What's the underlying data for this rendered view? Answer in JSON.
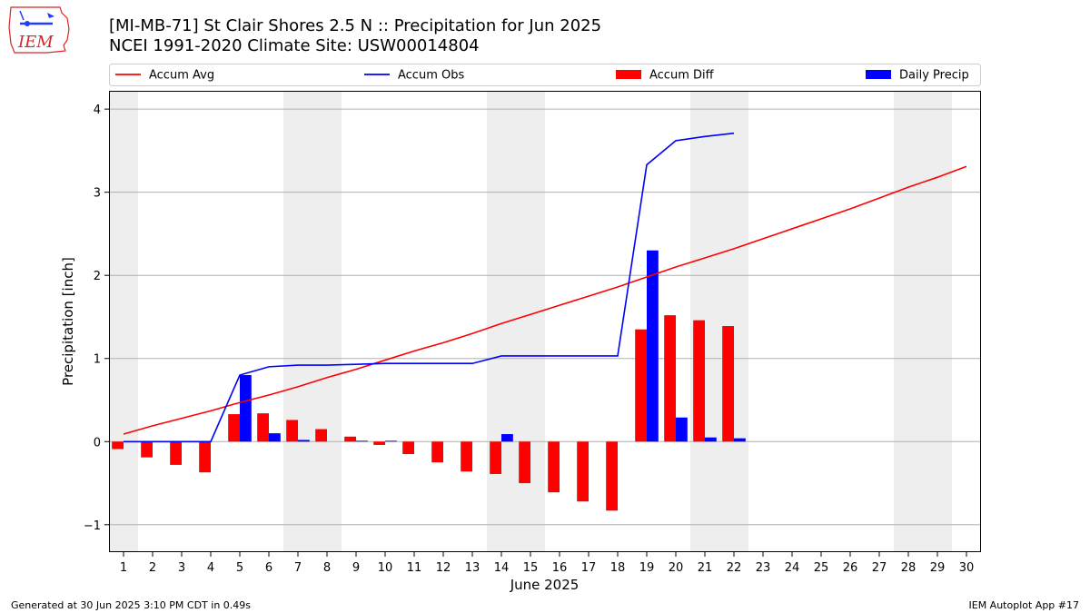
{
  "header": {
    "title_line1": "[MI-MB-71] St Clair Shores 2.5 N :: Precipitation for Jun 2025",
    "title_line2": "NCEI 1991-2020 Climate Site: USW00014804"
  },
  "logo": {
    "text": "IEM",
    "color": "#d62728"
  },
  "footer": {
    "generated": "Generated at 30 Jun 2025 3:10 PM CDT in 0.49s",
    "app": "IEM Autoplot App #17"
  },
  "chart_data": {
    "type": "bar",
    "xlabel": "June 2025",
    "ylabel": "Precipitation [inch]",
    "ylim": [
      -1.33,
      4.22
    ],
    "xlim": [
      0.5,
      30.5
    ],
    "yticks": [
      -1,
      0,
      1,
      2,
      3,
      4
    ],
    "xticks": [
      1,
      2,
      3,
      4,
      5,
      6,
      7,
      8,
      9,
      10,
      11,
      12,
      13,
      14,
      15,
      16,
      17,
      18,
      19,
      20,
      21,
      22,
      23,
      24,
      25,
      26,
      27,
      28,
      29,
      30
    ],
    "grid": "horizontal",
    "legend_placement": "top",
    "weekend_shading": [
      [
        0.5,
        1.5
      ],
      [
        6.5,
        8.5
      ],
      [
        13.5,
        15.5
      ],
      [
        20.5,
        22.5
      ],
      [
        27.5,
        29.5
      ]
    ],
    "series": [
      {
        "name": "Accum Avg",
        "kind": "line",
        "color": "#ff0000",
        "x": [
          1,
          2,
          3,
          4,
          5,
          6,
          7,
          8,
          9,
          10,
          11,
          12,
          13,
          14,
          15,
          16,
          17,
          18,
          19,
          20,
          21,
          22,
          23,
          24,
          25,
          26,
          27,
          28,
          29,
          30
        ],
        "values": [
          0.09,
          0.19,
          0.28,
          0.37,
          0.47,
          0.56,
          0.66,
          0.77,
          0.87,
          0.98,
          1.09,
          1.19,
          1.3,
          1.42,
          1.53,
          1.64,
          1.75,
          1.86,
          1.98,
          2.1,
          2.21,
          2.32,
          2.44,
          2.56,
          2.68,
          2.8,
          2.93,
          3.06,
          3.18,
          3.31
        ]
      },
      {
        "name": "Accum Obs",
        "kind": "line",
        "color": "#0000ff",
        "x": [
          1,
          2,
          3,
          4,
          5,
          6,
          7,
          8,
          9,
          10,
          11,
          12,
          13,
          14,
          15,
          16,
          17,
          18,
          19,
          20,
          21,
          22
        ],
        "values": [
          0.0,
          0.0,
          0.0,
          0.0,
          0.8,
          0.9,
          0.92,
          0.92,
          0.93,
          0.94,
          0.94,
          0.94,
          0.94,
          1.03,
          1.03,
          1.03,
          1.03,
          1.03,
          3.33,
          3.62,
          3.67,
          3.71
        ]
      },
      {
        "name": "Accum Diff",
        "kind": "bar",
        "color": "#ff0000",
        "offset": -0.2,
        "x": [
          1,
          2,
          3,
          4,
          5,
          6,
          7,
          8,
          9,
          10,
          11,
          12,
          13,
          14,
          15,
          16,
          17,
          18,
          19,
          20,
          21,
          22
        ],
        "values": [
          -0.09,
          -0.19,
          -0.28,
          -0.37,
          0.33,
          0.34,
          0.26,
          0.15,
          0.06,
          -0.04,
          -0.15,
          -0.25,
          -0.36,
          -0.39,
          -0.5,
          -0.61,
          -0.72,
          -0.83,
          1.35,
          1.52,
          1.46,
          1.39
        ]
      },
      {
        "name": "Daily Precip",
        "kind": "bar",
        "color": "#0000ff",
        "offset": 0.2,
        "x": [
          1,
          2,
          3,
          4,
          5,
          6,
          7,
          8,
          9,
          10,
          11,
          12,
          13,
          14,
          15,
          16,
          17,
          18,
          19,
          20,
          21,
          22
        ],
        "values": [
          0,
          0,
          0,
          0,
          0.8,
          0.1,
          0.02,
          0,
          0.01,
          0.01,
          0,
          0,
          0,
          0.09,
          0,
          0,
          0,
          0,
          2.3,
          0.29,
          0.05,
          0.04
        ]
      }
    ]
  }
}
